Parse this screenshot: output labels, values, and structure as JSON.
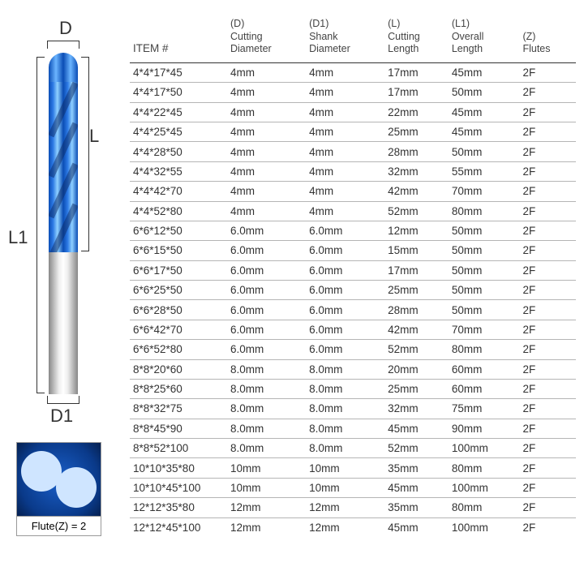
{
  "diagram": {
    "d_label": "D",
    "l_label": "L",
    "l1_label": "L1",
    "d1_label": "D1",
    "flute_caption": "Flute(Z) = 2",
    "colors": {
      "coating": "#0a4db5",
      "shank": "#cccccc",
      "text": "#333333"
    }
  },
  "table": {
    "type": "table",
    "background_color": "#ffffff",
    "text_color": "#333333",
    "border_color": "#b5b5b5",
    "header_border_color": "#333333",
    "font_size_pt": 10,
    "header_font_size_pt": 10,
    "columns": [
      {
        "code": "",
        "label": "ITEM #",
        "key": "item"
      },
      {
        "code": "(D)",
        "label": "Cutting Diameter",
        "key": "d"
      },
      {
        "code": "(D1)",
        "label": "Shank Diameter",
        "key": "d1"
      },
      {
        "code": "(L)",
        "label": "Cutting Length",
        "key": "l"
      },
      {
        "code": "(L1)",
        "label": "Overall Length",
        "key": "l1"
      },
      {
        "code": "(Z)",
        "label": "Flutes",
        "key": "z"
      }
    ],
    "rows": [
      {
        "item": "4*4*17*45",
        "d": "4mm",
        "d1": "4mm",
        "l": "17mm",
        "l1": "45mm",
        "z": "2F"
      },
      {
        "item": "4*4*17*50",
        "d": "4mm",
        "d1": "4mm",
        "l": "17mm",
        "l1": "50mm",
        "z": "2F"
      },
      {
        "item": "4*4*22*45",
        "d": "4mm",
        "d1": "4mm",
        "l": "22mm",
        "l1": "45mm",
        "z": "2F"
      },
      {
        "item": "4*4*25*45",
        "d": "4mm",
        "d1": "4mm",
        "l": "25mm",
        "l1": "45mm",
        "z": "2F"
      },
      {
        "item": "4*4*28*50",
        "d": "4mm",
        "d1": "4mm",
        "l": "28mm",
        "l1": "50mm",
        "z": "2F"
      },
      {
        "item": "4*4*32*55",
        "d": "4mm",
        "d1": "4mm",
        "l": "32mm",
        "l1": "55mm",
        "z": "2F"
      },
      {
        "item": "4*4*42*70",
        "d": "4mm",
        "d1": "4mm",
        "l": "42mm",
        "l1": "70mm",
        "z": "2F"
      },
      {
        "item": "4*4*52*80",
        "d": "4mm",
        "d1": "4mm",
        "l": "52mm",
        "l1": "80mm",
        "z": "2F"
      },
      {
        "item": "6*6*12*50",
        "d": "6.0mm",
        "d1": "6.0mm",
        "l": "12mm",
        "l1": "50mm",
        "z": "2F"
      },
      {
        "item": "6*6*15*50",
        "d": "6.0mm",
        "d1": "6.0mm",
        "l": "15mm",
        "l1": "50mm",
        "z": "2F"
      },
      {
        "item": "6*6*17*50",
        "d": "6.0mm",
        "d1": "6.0mm",
        "l": "17mm",
        "l1": "50mm",
        "z": "2F"
      },
      {
        "item": "6*6*25*50",
        "d": "6.0mm",
        "d1": "6.0mm",
        "l": "25mm",
        "l1": "50mm",
        "z": "2F"
      },
      {
        "item": "6*6*28*50",
        "d": "6.0mm",
        "d1": "6.0mm",
        "l": "28mm",
        "l1": "50mm",
        "z": "2F"
      },
      {
        "item": "6*6*42*70",
        "d": "6.0mm",
        "d1": "6.0mm",
        "l": "42mm",
        "l1": "70mm",
        "z": "2F"
      },
      {
        "item": "6*6*52*80",
        "d": "6.0mm",
        "d1": "6.0mm",
        "l": "52mm",
        "l1": "80mm",
        "z": "2F"
      },
      {
        "item": "8*8*20*60",
        "d": "8.0mm",
        "d1": "8.0mm",
        "l": "20mm",
        "l1": "60mm",
        "z": "2F"
      },
      {
        "item": "8*8*25*60",
        "d": "8.0mm",
        "d1": "8.0mm",
        "l": "25mm",
        "l1": "60mm",
        "z": "2F"
      },
      {
        "item": "8*8*32*75",
        "d": "8.0mm",
        "d1": "8.0mm",
        "l": "32mm",
        "l1": "75mm",
        "z": "2F"
      },
      {
        "item": "8*8*45*90",
        "d": "8.0mm",
        "d1": "8.0mm",
        "l": "45mm",
        "l1": "90mm",
        "z": "2F"
      },
      {
        "item": "8*8*52*100",
        "d": "8.0mm",
        "d1": "8.0mm",
        "l": "52mm",
        "l1": "100mm",
        "z": "2F"
      },
      {
        "item": "10*10*35*80",
        "d": "10mm",
        "d1": "10mm",
        "l": "35mm",
        "l1": "80mm",
        "z": "2F"
      },
      {
        "item": "10*10*45*100",
        "d": "10mm",
        "d1": "10mm",
        "l": "45mm",
        "l1": "100mm",
        "z": "2F"
      },
      {
        "item": "12*12*35*80",
        "d": "12mm",
        "d1": "12mm",
        "l": "35mm",
        "l1": "80mm",
        "z": "2F"
      },
      {
        "item": "12*12*45*100",
        "d": "12mm",
        "d1": "12mm",
        "l": "45mm",
        "l1": "100mm",
        "z": "2F"
      }
    ]
  }
}
